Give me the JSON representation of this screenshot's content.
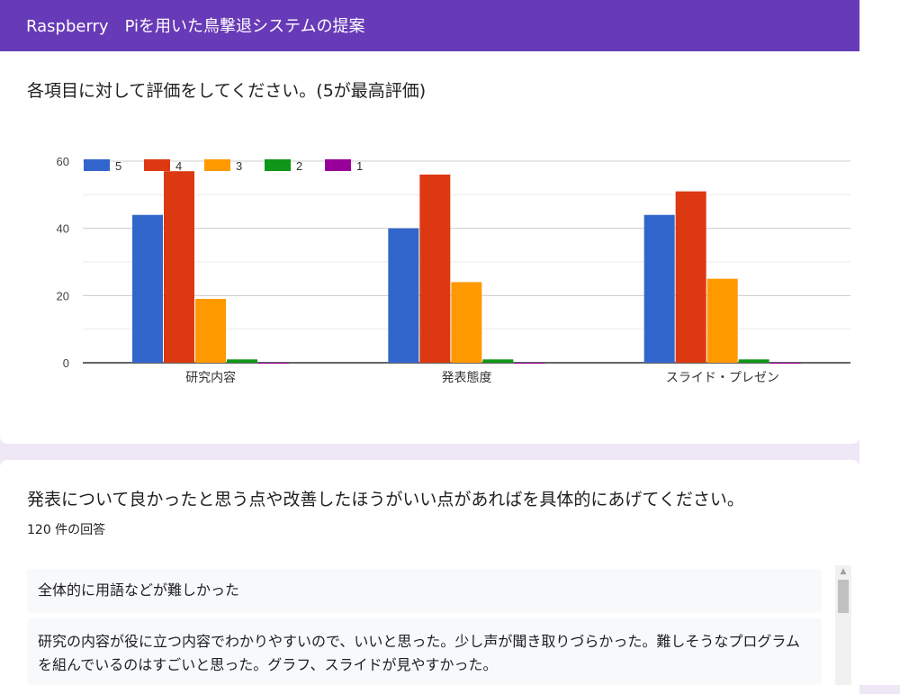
{
  "header": {
    "title": "Raspberry　Piを用いた鳥撃退システムの提案"
  },
  "question1": {
    "title": "各項目に対して評価をしてください。(5が最高評価)"
  },
  "chart_data": {
    "type": "bar",
    "categories": [
      "研究内容",
      "発表態度",
      "スライド・プレゼン"
    ],
    "series": [
      {
        "name": "5",
        "color": "#3366cc",
        "values": [
          44,
          40,
          44
        ]
      },
      {
        "name": "4",
        "color": "#dc3912",
        "values": [
          57,
          56,
          51
        ]
      },
      {
        "name": "3",
        "color": "#ff9900",
        "values": [
          19,
          24,
          25
        ]
      },
      {
        "name": "2",
        "color": "#109618",
        "values": [
          1,
          1,
          1
        ]
      },
      {
        "name": "1",
        "color": "#990099",
        "values": [
          0,
          0,
          0
        ]
      }
    ],
    "yticks": [
      "0",
      "20",
      "40",
      "60"
    ],
    "ylim": [
      0,
      60
    ],
    "grid": true,
    "legend": "top-left"
  },
  "question2": {
    "title": "発表について良かったと思う点や改善したほうがいい点があればを具体的にあげてください。",
    "response_count": "120 件の回答",
    "responses": [
      "全体的に用語などが難しかった",
      "研究の内容が役に立つ内容でわかりやすいので、いいと思った。少し声が聞き取りづらかった。難しそうなプログラムを組んでいるのはすごいと思った。グラフ、スライドが見やすかった。"
    ]
  },
  "scrollbar": {
    "up_arrow_icon": "triangle-up-icon"
  }
}
